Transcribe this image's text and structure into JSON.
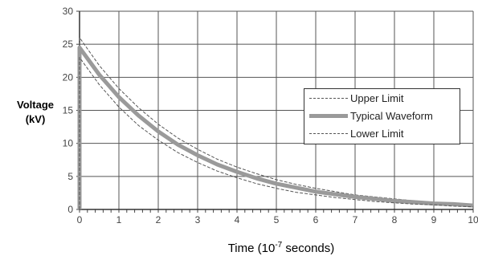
{
  "chart_data": {
    "type": "line",
    "title": "",
    "xlabel_main": "Time (10",
    "xlabel_exp": "-7",
    "xlabel_tail": " seconds)",
    "ylabel_line1": "Voltage",
    "ylabel_line2": "(kV)",
    "xlim": [
      0,
      10
    ],
    "ylim": [
      0,
      30
    ],
    "x_ticks": [
      "0",
      "1",
      "2",
      "3",
      "4",
      "5",
      "6",
      "7",
      "8",
      "9",
      "10"
    ],
    "y_ticks": [
      "0",
      "5",
      "10",
      "15",
      "20",
      "25",
      "30"
    ],
    "grid": true,
    "legend_position": "right",
    "x": [
      0,
      0.5,
      1,
      1.5,
      2,
      2.5,
      3,
      3.5,
      4,
      4.5,
      5,
      5.5,
      6,
      6.5,
      7,
      7.5,
      8,
      8.5,
      9,
      9.5,
      10
    ],
    "series": [
      {
        "name": "Upper Limit",
        "style": "dashed",
        "color": "#555555",
        "values": [
          26.0,
          21.8,
          18.3,
          15.4,
          12.9,
          10.8,
          9.1,
          7.6,
          6.4,
          5.4,
          4.5,
          3.8,
          3.2,
          2.7,
          2.2,
          1.9,
          1.6,
          1.3,
          1.1,
          0.9,
          0.8
        ]
      },
      {
        "name": "Typical Waveform",
        "style": "thick",
        "color": "#9a9a9a",
        "values": [
          24.5,
          20.4,
          17.0,
          14.2,
          11.8,
          9.8,
          8.2,
          6.8,
          5.7,
          4.7,
          3.9,
          3.3,
          2.7,
          2.3,
          1.9,
          1.6,
          1.3,
          1.1,
          0.9,
          0.8,
          0.6
        ]
      },
      {
        "name": "Lower Limit",
        "style": "dashed",
        "color": "#555555",
        "values": [
          23.0,
          18.9,
          15.5,
          12.7,
          10.5,
          8.6,
          7.1,
          5.8,
          4.8,
          3.9,
          3.2,
          2.6,
          2.2,
          1.8,
          1.5,
          1.2,
          1.0,
          0.8,
          0.7,
          0.5,
          0.4
        ]
      }
    ]
  }
}
